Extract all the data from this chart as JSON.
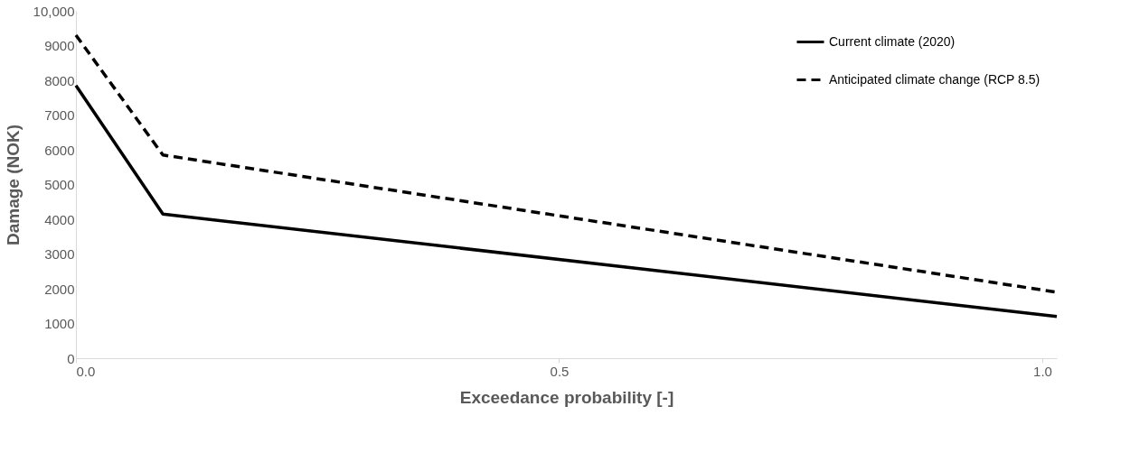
{
  "chart_data": {
    "type": "line",
    "xlabel": "Exceedance probability [-]",
    "ylabel": "Damage (NOK)",
    "x": [
      0,
      0.09,
      1.015
    ],
    "series": [
      {
        "name": "Current climate (2020)",
        "color": "#000000",
        "line_style": "solid",
        "values": [
          7850,
          4150,
          1200
        ]
      },
      {
        "name": "Anticipated climate change (RCP 8.5)",
        "color": "#000000",
        "line_style": "dashed",
        "values": [
          9300,
          5850,
          1900
        ]
      }
    ],
    "xlim": [
      0,
      1.015
    ],
    "xticks": [
      {
        "value": 0,
        "label": "0.0"
      },
      {
        "value": 0.5,
        "label": "0.5"
      },
      {
        "value": 1,
        "label": "1.0"
      }
    ],
    "ylim": [
      0,
      10000
    ],
    "yticks": [
      0,
      1000,
      2000,
      3000,
      4000,
      5000,
      6000,
      7000,
      8000,
      9000,
      {
        "value": 10000,
        "label": "10,000"
      }
    ],
    "grid": false,
    "legend": "top right",
    "marker": "none"
  }
}
